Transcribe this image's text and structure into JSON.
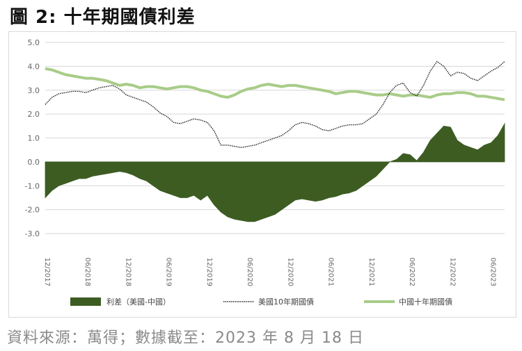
{
  "figure": {
    "title": "圖 2: 十年期國債利差",
    "source": "資料來源：萬得；數據截至：2023 年 8 月 18 日"
  },
  "colors": {
    "spread": "#3d5c22",
    "us10y": "#222222",
    "cn10y": "#a8cc88",
    "grid": "#d6d6d6"
  },
  "chart_data": {
    "type": "line",
    "title": "",
    "xlabel": "",
    "ylabel": "",
    "ylim": [
      -3.0,
      5.0
    ],
    "yticks": [
      "5.0",
      "4.0",
      "3.0",
      "2.0",
      "1.0",
      "0.0",
      "-1.0",
      "-2.0",
      "-3.0"
    ],
    "ytick_values": [
      5,
      4,
      3,
      2,
      1,
      0,
      -1,
      -2,
      -3
    ],
    "xticks": [
      "12/2017",
      "06/2018",
      "12/2018",
      "06/2019",
      "12/2019",
      "06/2020",
      "12/2020",
      "06/2021",
      "12/2021",
      "06/2022",
      "12/2022",
      "06/2023"
    ],
    "xtick_positions": [
      0,
      6,
      12,
      18,
      24,
      30,
      36,
      42,
      48,
      54,
      60,
      66
    ],
    "xlim": [
      0,
      68
    ],
    "grid": "horizontal",
    "legend_position": "bottom",
    "series": [
      {
        "name": "利差（美國-中國）",
        "style": "area",
        "x": [
          0,
          1,
          2,
          3,
          4,
          5,
          6,
          7,
          8,
          9,
          10,
          11,
          12,
          13,
          14,
          15,
          16,
          17,
          18,
          19,
          20,
          21,
          22,
          23,
          24,
          25,
          26,
          27,
          28,
          29,
          30,
          31,
          32,
          33,
          34,
          35,
          36,
          37,
          38,
          39,
          40,
          41,
          42,
          43,
          44,
          45,
          46,
          47,
          48,
          49,
          50,
          51,
          52,
          53,
          54,
          55,
          56,
          57,
          58,
          59,
          60,
          61,
          62,
          63,
          64,
          65,
          66,
          67,
          68
        ],
        "values": [
          -1.5,
          -1.2,
          -1.0,
          -0.9,
          -0.8,
          -0.7,
          -0.7,
          -0.6,
          -0.55,
          -0.5,
          -0.45,
          -0.4,
          -0.45,
          -0.55,
          -0.7,
          -0.8,
          -1.0,
          -1.2,
          -1.3,
          -1.4,
          -1.5,
          -1.5,
          -1.4,
          -1.6,
          -1.4,
          -1.8,
          -2.1,
          -2.3,
          -2.4,
          -2.45,
          -2.5,
          -2.5,
          -2.4,
          -2.3,
          -2.2,
          -2.0,
          -1.8,
          -1.6,
          -1.55,
          -1.6,
          -1.65,
          -1.6,
          -1.5,
          -1.45,
          -1.35,
          -1.3,
          -1.2,
          -1.0,
          -0.8,
          -0.6,
          -0.3,
          0.0,
          0.1,
          0.35,
          0.3,
          0.05,
          0.4,
          0.9,
          1.2,
          1.5,
          1.45,
          0.9,
          0.7,
          0.6,
          0.5,
          0.7,
          0.8,
          1.1,
          1.6
        ]
      },
      {
        "name": "美國10年期國債",
        "style": "dotted",
        "x": [
          0,
          1,
          2,
          3,
          4,
          5,
          6,
          7,
          8,
          9,
          10,
          11,
          12,
          13,
          14,
          15,
          16,
          17,
          18,
          19,
          20,
          21,
          22,
          23,
          24,
          25,
          26,
          27,
          28,
          29,
          30,
          31,
          32,
          33,
          34,
          35,
          36,
          37,
          38,
          39,
          40,
          41,
          42,
          43,
          44,
          45,
          46,
          47,
          48,
          49,
          50,
          51,
          52,
          53,
          54,
          55,
          56,
          57,
          58,
          59,
          60,
          61,
          62,
          63,
          64,
          65,
          66,
          67,
          68
        ],
        "values": [
          2.4,
          2.7,
          2.85,
          2.9,
          2.95,
          2.95,
          2.9,
          3.0,
          3.1,
          3.15,
          3.2,
          3.05,
          2.8,
          2.7,
          2.6,
          2.5,
          2.3,
          2.05,
          1.9,
          1.65,
          1.6,
          1.7,
          1.8,
          1.75,
          1.65,
          1.3,
          0.7,
          0.7,
          0.65,
          0.6,
          0.65,
          0.7,
          0.8,
          0.9,
          1.0,
          1.1,
          1.3,
          1.55,
          1.65,
          1.6,
          1.5,
          1.35,
          1.3,
          1.4,
          1.5,
          1.55,
          1.55,
          1.6,
          1.8,
          2.0,
          2.4,
          2.9,
          3.2,
          3.3,
          2.9,
          2.75,
          3.2,
          3.8,
          4.2,
          4.0,
          3.6,
          3.75,
          3.7,
          3.5,
          3.4,
          3.6,
          3.8,
          3.95,
          4.2
        ]
      },
      {
        "name": "中國十年期國債",
        "style": "line",
        "x": [
          0,
          1,
          2,
          3,
          4,
          5,
          6,
          7,
          8,
          9,
          10,
          11,
          12,
          13,
          14,
          15,
          16,
          17,
          18,
          19,
          20,
          21,
          22,
          23,
          24,
          25,
          26,
          27,
          28,
          29,
          30,
          31,
          32,
          33,
          34,
          35,
          36,
          37,
          38,
          39,
          40,
          41,
          42,
          43,
          44,
          45,
          46,
          47,
          48,
          49,
          50,
          51,
          52,
          53,
          54,
          55,
          56,
          57,
          58,
          59,
          60,
          61,
          62,
          63,
          64,
          65,
          66,
          67,
          68
        ],
        "values": [
          3.9,
          3.85,
          3.75,
          3.65,
          3.6,
          3.55,
          3.5,
          3.5,
          3.45,
          3.4,
          3.3,
          3.2,
          3.25,
          3.2,
          3.1,
          3.15,
          3.15,
          3.1,
          3.05,
          3.1,
          3.15,
          3.15,
          3.1,
          3.0,
          2.95,
          2.85,
          2.75,
          2.7,
          2.8,
          2.95,
          3.05,
          3.1,
          3.2,
          3.25,
          3.2,
          3.15,
          3.2,
          3.2,
          3.15,
          3.1,
          3.05,
          3.0,
          2.95,
          2.85,
          2.9,
          2.95,
          2.95,
          2.9,
          2.85,
          2.8,
          2.8,
          2.85,
          2.8,
          2.75,
          2.8,
          2.8,
          2.75,
          2.7,
          2.8,
          2.85,
          2.85,
          2.9,
          2.9,
          2.85,
          2.75,
          2.75,
          2.7,
          2.65,
          2.6
        ]
      }
    ]
  }
}
